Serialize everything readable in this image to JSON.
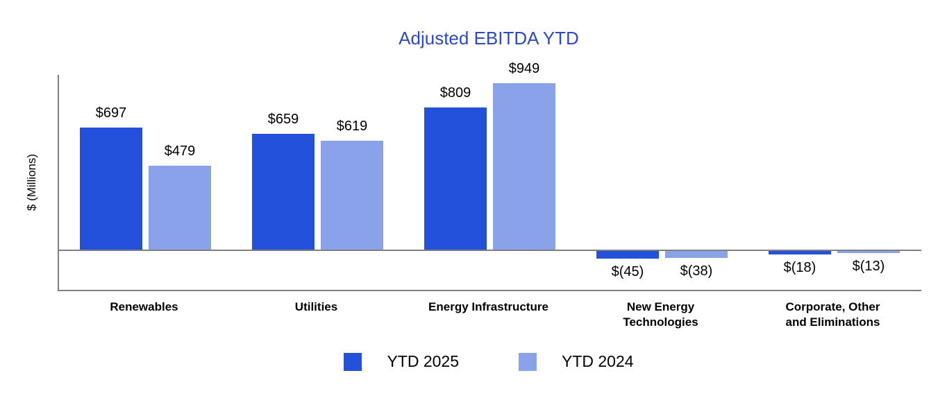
{
  "chart_data": {
    "type": "bar",
    "title": "Adjusted EBITDA YTD",
    "ylabel": "$ (Millions)",
    "categories": [
      "Renewables",
      "Utilities",
      "Energy Infrastructure",
      "New Energy Technologies",
      "Corporate, Other and Eliminations"
    ],
    "category_label_lines": [
      [
        "Renewables"
      ],
      [
        "Utilities"
      ],
      [
        "Energy Infrastructure"
      ],
      [
        "New Energy",
        "Technologies"
      ],
      [
        "Corporate, Other",
        "and Eliminations"
      ]
    ],
    "series": [
      {
        "name": "YTD 2025",
        "color": "#2351DB",
        "values": [
          697,
          659,
          809,
          -45,
          -18
        ],
        "labels": [
          "$697",
          "$659",
          "$809",
          "$(45)",
          "$(18)"
        ]
      },
      {
        "name": "YTD 2024",
        "color": "#8AA2E9",
        "values": [
          479,
          619,
          949,
          -38,
          -13
        ],
        "labels": [
          "$479",
          "$619",
          "$949",
          "$(38)",
          "$(13)"
        ]
      }
    ],
    "title_color": "#2B4AC9",
    "axis_color": "#7f7f7f",
    "legend_position": "bottom",
    "grid": false,
    "ylim_px_note": "",
    "ylim": [
      -100,
      1000
    ]
  }
}
